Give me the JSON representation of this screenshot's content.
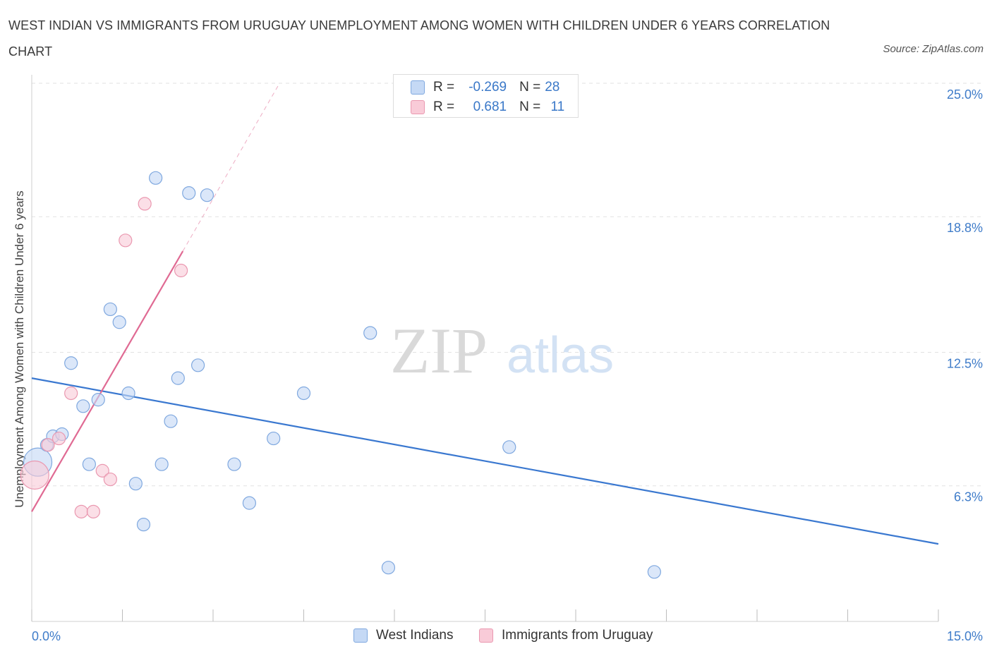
{
  "title": "WEST INDIAN VS IMMIGRANTS FROM URUGUAY UNEMPLOYMENT AMONG WOMEN WITH CHILDREN UNDER 6 YEARS CORRELATION CHART",
  "source": "Source: ZipAtlas.com",
  "watermark": {
    "zip": "ZIP",
    "atlas": "atlas"
  },
  "stats": [
    {
      "r_label": "R =",
      "r_value": "-0.269",
      "n_label": "N =",
      "n_value": "28"
    },
    {
      "r_label": "R =",
      "r_value": "0.681",
      "n_label": "N =",
      "n_value": "11"
    }
  ],
  "legend": [
    "West Indians",
    "Immigrants from Uruguay"
  ],
  "colors": {
    "blue_fill": "#c5d9f5",
    "blue_stroke": "#7fa8df",
    "blue_line": "#3a78d0",
    "pink_fill": "#f9cbd8",
    "pink_stroke": "#ea98b0",
    "pink_line": "#e06a93",
    "tick_label": "#3f7cc9",
    "grid": "#e2e2e2"
  },
  "chart_data": {
    "type": "scatter",
    "title": "WEST INDIAN VS IMMIGRANTS FROM URUGUAY UNEMPLOYMENT AMONG WOMEN WITH CHILDREN UNDER 6 YEARS CORRELATION CHART",
    "xlabel": "",
    "ylabel": "Unemployment Among Women with Children Under 6 years",
    "xlim": [
      0,
      15
    ],
    "ylim": [
      0,
      25
    ],
    "x_tick_labels": [
      "0.0%",
      "15.0%"
    ],
    "y_ticks": [
      6.3,
      12.5,
      18.8,
      25.0
    ],
    "y_tick_labels": [
      "6.3%",
      "12.5%",
      "18.8%",
      "25.0%"
    ],
    "grid": true,
    "series": [
      {
        "name": "West Indians",
        "points": [
          {
            "x": 0.1,
            "y": 7.4,
            "size": "large"
          },
          {
            "x": 0.25,
            "y": 8.2
          },
          {
            "x": 0.35,
            "y": 8.6
          },
          {
            "x": 0.5,
            "y": 8.7
          },
          {
            "x": 0.65,
            "y": 12.0
          },
          {
            "x": 0.85,
            "y": 10.0
          },
          {
            "x": 0.95,
            "y": 7.3
          },
          {
            "x": 1.1,
            "y": 10.3
          },
          {
            "x": 1.3,
            "y": 14.5
          },
          {
            "x": 1.45,
            "y": 13.9
          },
          {
            "x": 1.6,
            "y": 10.6
          },
          {
            "x": 1.72,
            "y": 6.4
          },
          {
            "x": 1.85,
            "y": 4.5
          },
          {
            "x": 2.05,
            "y": 20.6
          },
          {
            "x": 2.15,
            "y": 7.3
          },
          {
            "x": 2.3,
            "y": 9.3
          },
          {
            "x": 2.42,
            "y": 11.3
          },
          {
            "x": 2.6,
            "y": 19.9
          },
          {
            "x": 2.75,
            "y": 11.9
          },
          {
            "x": 2.9,
            "y": 19.8
          },
          {
            "x": 3.35,
            "y": 7.3
          },
          {
            "x": 3.6,
            "y": 5.5
          },
          {
            "x": 4.0,
            "y": 8.5
          },
          {
            "x": 4.5,
            "y": 10.6
          },
          {
            "x": 5.6,
            "y": 13.4
          },
          {
            "x": 5.9,
            "y": 2.5
          },
          {
            "x": 7.9,
            "y": 8.1
          },
          {
            "x": 10.3,
            "y": 2.3
          }
        ],
        "trend": {
          "x0": 0,
          "y0": 11.3,
          "x1": 15,
          "y1": 3.6
        }
      },
      {
        "name": "Immigrants from Uruguay",
        "points": [
          {
            "x": 0.05,
            "y": 6.8,
            "size": "large"
          },
          {
            "x": 0.27,
            "y": 8.2
          },
          {
            "x": 0.45,
            "y": 8.5
          },
          {
            "x": 0.65,
            "y": 10.6
          },
          {
            "x": 0.82,
            "y": 5.1
          },
          {
            "x": 1.02,
            "y": 5.1
          },
          {
            "x": 1.17,
            "y": 7.0
          },
          {
            "x": 1.3,
            "y": 6.6
          },
          {
            "x": 1.55,
            "y": 17.7
          },
          {
            "x": 1.87,
            "y": 19.4
          },
          {
            "x": 2.47,
            "y": 16.3
          }
        ],
        "trend": {
          "x0": 0,
          "y0": 5.1,
          "x1": 2.5,
          "y1": 17.2,
          "dashed_to": {
            "x": 4.1,
            "y": 25.0
          }
        }
      }
    ]
  }
}
